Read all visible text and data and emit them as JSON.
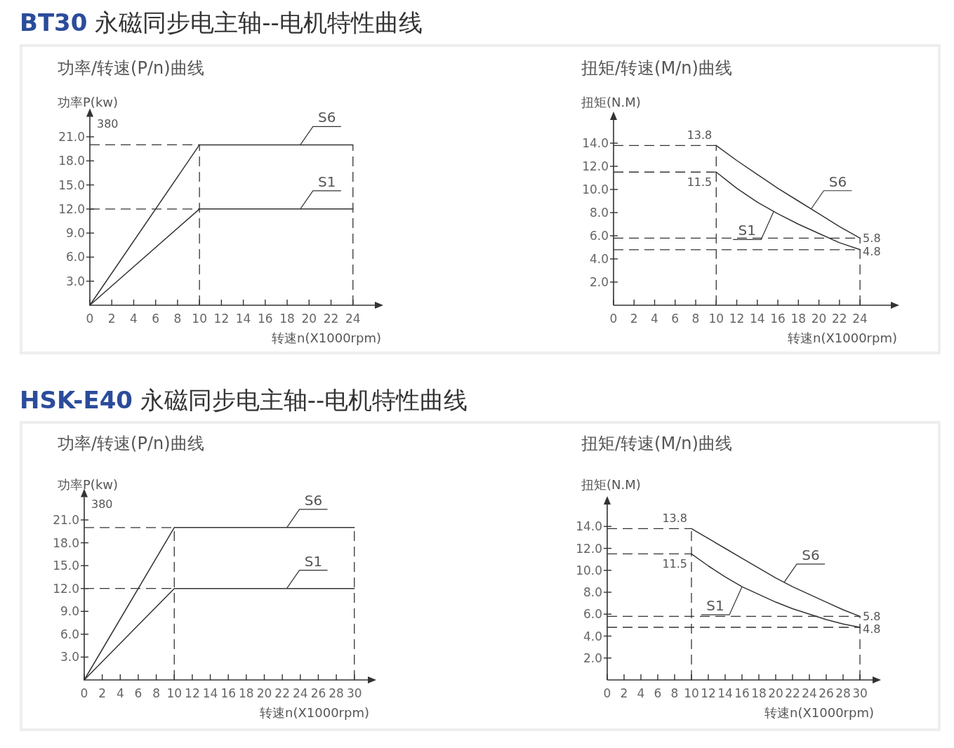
{
  "chart_data": [
    {
      "type": "line",
      "title": "功率/转速(P/n)曲线",
      "xlabel": "转速n(X1000rpm)",
      "ylabel": "功率P(kw)",
      "annotations": [
        "**BT30** 永磁同步电主轴--电机特性曲线",
        "380"
      ],
      "xlim": [
        0,
        26
      ],
      "ylim": [
        0,
        23.5
      ],
      "xticks": [
        0,
        2,
        4,
        6,
        8,
        10,
        12,
        14,
        16,
        18,
        20,
        22,
        24
      ],
      "yticks": [
        {
          "value": 3,
          "label": "3.0"
        },
        {
          "value": 6,
          "label": "6.0"
        },
        {
          "value": 9,
          "label": "9.0"
        },
        {
          "value": 12,
          "label": "12.0"
        },
        {
          "value": 15,
          "label": "15.0"
        },
        {
          "value": 18,
          "label": "18.0"
        },
        {
          "value": 21,
          "label": "21.0"
        }
      ],
      "legend": false,
      "grid": false,
      "line_style": "solid",
      "series": [
        {
          "name": "S6",
          "color": "#333333",
          "x": [
            0,
            10,
            24
          ],
          "values": [
            0,
            20,
            20
          ]
        },
        {
          "name": "S1",
          "color": "#333333",
          "x": [
            0,
            10,
            24
          ],
          "values": [
            0,
            12,
            12
          ]
        }
      ],
      "ref_lines": [
        {
          "axis": "y",
          "value": 20,
          "line_style": "dashed"
        },
        {
          "axis": "y",
          "value": 12,
          "line_style": "dashed"
        },
        {
          "axis": "x",
          "value": 10,
          "line_style": "dashed"
        },
        {
          "axis": "x",
          "value": 24,
          "line_style": "dashed"
        }
      ]
    },
    {
      "type": "line",
      "title": "扭矩/转速(M/n)曲线",
      "xlabel": "转速n(X1000rpm)",
      "ylabel": "扭矩(N.M)",
      "xlim": [
        0,
        27
      ],
      "ylim": [
        0,
        16
      ],
      "xticks": [
        0,
        2,
        4,
        6,
        8,
        10,
        12,
        14,
        16,
        18,
        20,
        22,
        24
      ],
      "yticks": [
        {
          "value": 2,
          "label": "2.0"
        },
        {
          "value": 4,
          "label": "4.0"
        },
        {
          "value": 6,
          "label": "6.0"
        },
        {
          "value": 8,
          "label": "8.0"
        },
        {
          "value": 10,
          "label": "10.0"
        },
        {
          "value": 12,
          "label": "12.0"
        },
        {
          "value": 14,
          "label": "14.0"
        }
      ],
      "legend": false,
      "grid": false,
      "line_style": "solid",
      "series": [
        {
          "name": "S6",
          "color": "#333333",
          "x": [
            10,
            12,
            14,
            16,
            18,
            20,
            22,
            24
          ],
          "values": [
            13.8,
            12.5,
            11.3,
            10.1,
            9.0,
            7.9,
            6.8,
            5.8
          ],
          "value_labels": [
            "13.8",
            null,
            null,
            null,
            null,
            null,
            null,
            "5.8"
          ]
        },
        {
          "name": "S1",
          "color": "#333333",
          "x": [
            10,
            12,
            14,
            16,
            18,
            20,
            22,
            24
          ],
          "values": [
            11.5,
            10.1,
            8.9,
            7.9,
            7.0,
            6.2,
            5.4,
            4.8
          ],
          "value_labels": [
            "11.5",
            null,
            null,
            null,
            null,
            null,
            null,
            "4.8"
          ]
        }
      ],
      "ref_lines": [
        {
          "axis": "y",
          "value": 13.8,
          "line_style": "dashed"
        },
        {
          "axis": "y",
          "value": 11.5,
          "line_style": "dashed"
        },
        {
          "axis": "y",
          "value": 5.8,
          "line_style": "dashed"
        },
        {
          "axis": "y",
          "value": 4.8,
          "line_style": "dashed"
        },
        {
          "axis": "x",
          "value": 10,
          "line_style": "dashed"
        },
        {
          "axis": "x",
          "value": 24,
          "line_style": "dashed"
        }
      ]
    },
    {
      "type": "line",
      "title": "功率/转速(P/n)曲线",
      "xlabel": "转速n(X1000rpm)",
      "ylabel": "功率P(kw)",
      "annotations": [
        "**HSK-E40** 永磁同步电主轴--电机特性曲线",
        "380"
      ],
      "xlim": [
        0,
        31.5
      ],
      "ylim": [
        0,
        24
      ],
      "xticks": [
        0,
        2,
        4,
        6,
        8,
        10,
        12,
        14,
        16,
        18,
        20,
        22,
        24,
        26,
        28,
        30
      ],
      "yticks": [
        {
          "value": 3,
          "label": "3.0"
        },
        {
          "value": 6,
          "label": "6.0"
        },
        {
          "value": 9,
          "label": "9.0"
        },
        {
          "value": 12,
          "label": "12.0"
        },
        {
          "value": 15,
          "label": "15.0"
        },
        {
          "value": 18,
          "label": "18.0"
        },
        {
          "value": 21,
          "label": "21.0"
        }
      ],
      "legend": false,
      "grid": false,
      "line_style": "solid",
      "series": [
        {
          "name": "S6",
          "color": "#333333",
          "x": [
            0,
            10,
            30
          ],
          "values": [
            0,
            20,
            20
          ]
        },
        {
          "name": "S1",
          "color": "#333333",
          "x": [
            0,
            10,
            30
          ],
          "values": [
            0,
            12,
            12
          ]
        }
      ],
      "ref_lines": [
        {
          "axis": "y",
          "value": 20,
          "line_style": "dashed"
        },
        {
          "axis": "y",
          "value": 12,
          "line_style": "dashed"
        },
        {
          "axis": "x",
          "value": 10,
          "line_style": "dashed"
        },
        {
          "axis": "x",
          "value": 30,
          "line_style": "dashed"
        }
      ]
    },
    {
      "type": "line",
      "title": "扭矩/转速(M/n)曲线",
      "xlabel": "转速n(X1000rpm)",
      "ylabel": "扭矩(N.M)",
      "xlim": [
        0,
        31.5
      ],
      "ylim": [
        0,
        16
      ],
      "xticks": [
        0,
        2,
        4,
        6,
        8,
        10,
        12,
        14,
        16,
        18,
        20,
        22,
        24,
        26,
        28,
        30
      ],
      "yticks": [
        {
          "value": 2,
          "label": "2.0"
        },
        {
          "value": 4,
          "label": "4.0"
        },
        {
          "value": 6,
          "label": "6.0"
        },
        {
          "value": 8,
          "label": "8.0"
        },
        {
          "value": 10,
          "label": "10.0"
        },
        {
          "value": 12,
          "label": "12.0"
        },
        {
          "value": 14,
          "label": "14.0"
        }
      ],
      "legend": false,
      "grid": false,
      "line_style": "solid",
      "series": [
        {
          "name": "S6",
          "color": "#333333",
          "x": [
            10,
            12,
            14,
            16,
            18,
            20,
            22,
            24,
            26,
            28,
            30
          ],
          "values": [
            13.8,
            12.9,
            12.0,
            11.1,
            10.2,
            9.3,
            8.5,
            7.8,
            7.1,
            6.4,
            5.8
          ],
          "value_labels": [
            "13.8",
            null,
            null,
            null,
            null,
            null,
            null,
            null,
            null,
            null,
            "5.8"
          ]
        },
        {
          "name": "S1",
          "color": "#333333",
          "x": [
            10,
            12,
            14,
            16,
            18,
            20,
            22,
            24,
            26,
            28,
            30
          ],
          "values": [
            11.5,
            10.4,
            9.4,
            8.5,
            7.8,
            7.1,
            6.5,
            6.0,
            5.5,
            5.1,
            4.8
          ],
          "value_labels": [
            "11.5",
            null,
            null,
            null,
            null,
            null,
            null,
            null,
            null,
            null,
            "4.8"
          ]
        }
      ],
      "ref_lines": [
        {
          "axis": "y",
          "value": 13.8,
          "line_style": "dashed"
        },
        {
          "axis": "y",
          "value": 11.5,
          "line_style": "dashed"
        },
        {
          "axis": "y",
          "value": 5.8,
          "line_style": "dashed"
        },
        {
          "axis": "y",
          "value": 4.8,
          "line_style": "dashed"
        },
        {
          "axis": "x",
          "value": 10,
          "line_style": "dashed"
        },
        {
          "axis": "x",
          "value": 30,
          "line_style": "dashed"
        }
      ]
    }
  ]
}
